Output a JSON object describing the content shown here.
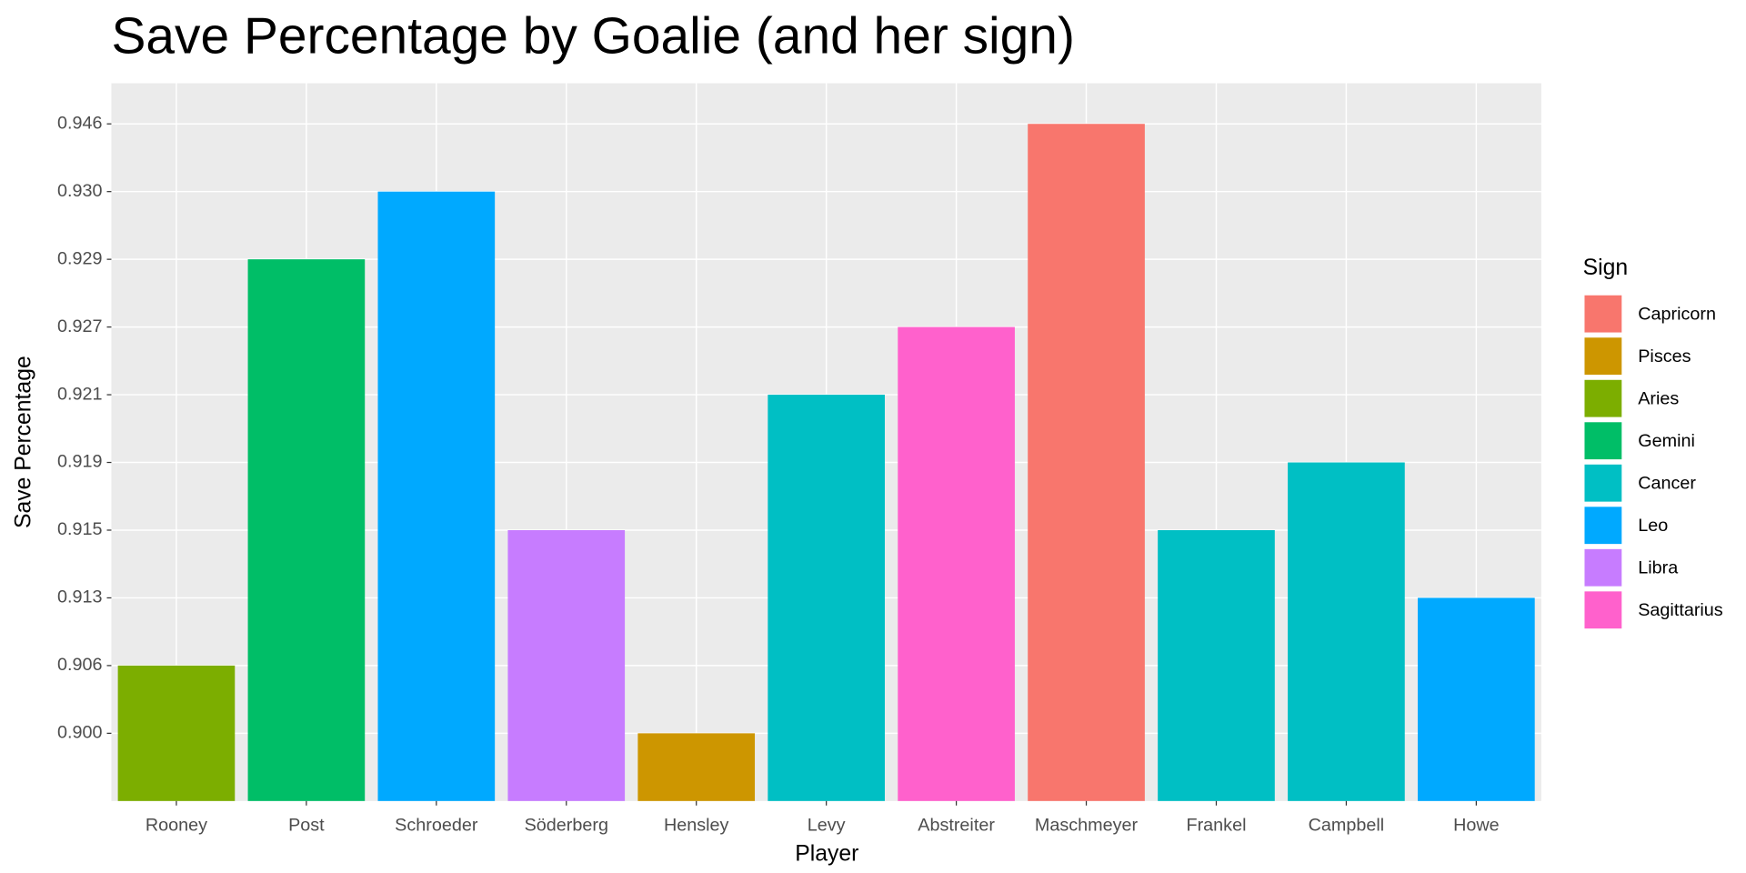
{
  "chart_data": {
    "type": "bar",
    "title": "Save Percentage by Goalie (and her sign)",
    "x_label": "Player",
    "y_label": "Save Percentage",
    "categories": [
      "Rooney",
      "Post",
      "Schroeder",
      "Söderberg",
      "Hensley",
      "Levy",
      "Abstreiter",
      "Maschmeyer",
      "Frankel",
      "Campbell",
      "Howe"
    ],
    "values": [
      0.906,
      0.929,
      0.93,
      0.915,
      0.9,
      0.921,
      0.927,
      0.946,
      0.915,
      0.919,
      0.913
    ],
    "signs": [
      "Aries",
      "Gemini",
      "Leo",
      "Libra",
      "Pisces",
      "Cancer",
      "Sagittarius",
      "Capricorn",
      "Cancer",
      "Cancer",
      "Leo"
    ],
    "y_discrete": true,
    "yticks": [
      {
        "value": 0.9,
        "label": "0.900"
      },
      {
        "value": 0.906,
        "label": "0.906"
      },
      {
        "value": 0.913,
        "label": "0.913"
      },
      {
        "value": 0.915,
        "label": "0.915"
      },
      {
        "value": 0.919,
        "label": "0.919"
      },
      {
        "value": 0.921,
        "label": "0.921"
      },
      {
        "value": 0.927,
        "label": "0.927"
      },
      {
        "value": 0.929,
        "label": "0.929"
      },
      {
        "value": 0.93,
        "label": "0.930"
      },
      {
        "value": 0.946,
        "label": "0.946"
      }
    ],
    "legend_title": "Sign",
    "legend": [
      {
        "name": "Capricorn",
        "color": "#f8766d"
      },
      {
        "name": "Pisces",
        "color": "#cd9600"
      },
      {
        "name": "Aries",
        "color": "#7cae00"
      },
      {
        "name": "Gemini",
        "color": "#00be67"
      },
      {
        "name": "Cancer",
        "color": "#00bfc4"
      },
      {
        "name": "Leo",
        "color": "#00a9ff"
      },
      {
        "name": "Libra",
        "color": "#c77cff"
      },
      {
        "name": "Sagittarius",
        "color": "#ff61cc"
      }
    ],
    "legend_position": "right",
    "grid": true
  }
}
